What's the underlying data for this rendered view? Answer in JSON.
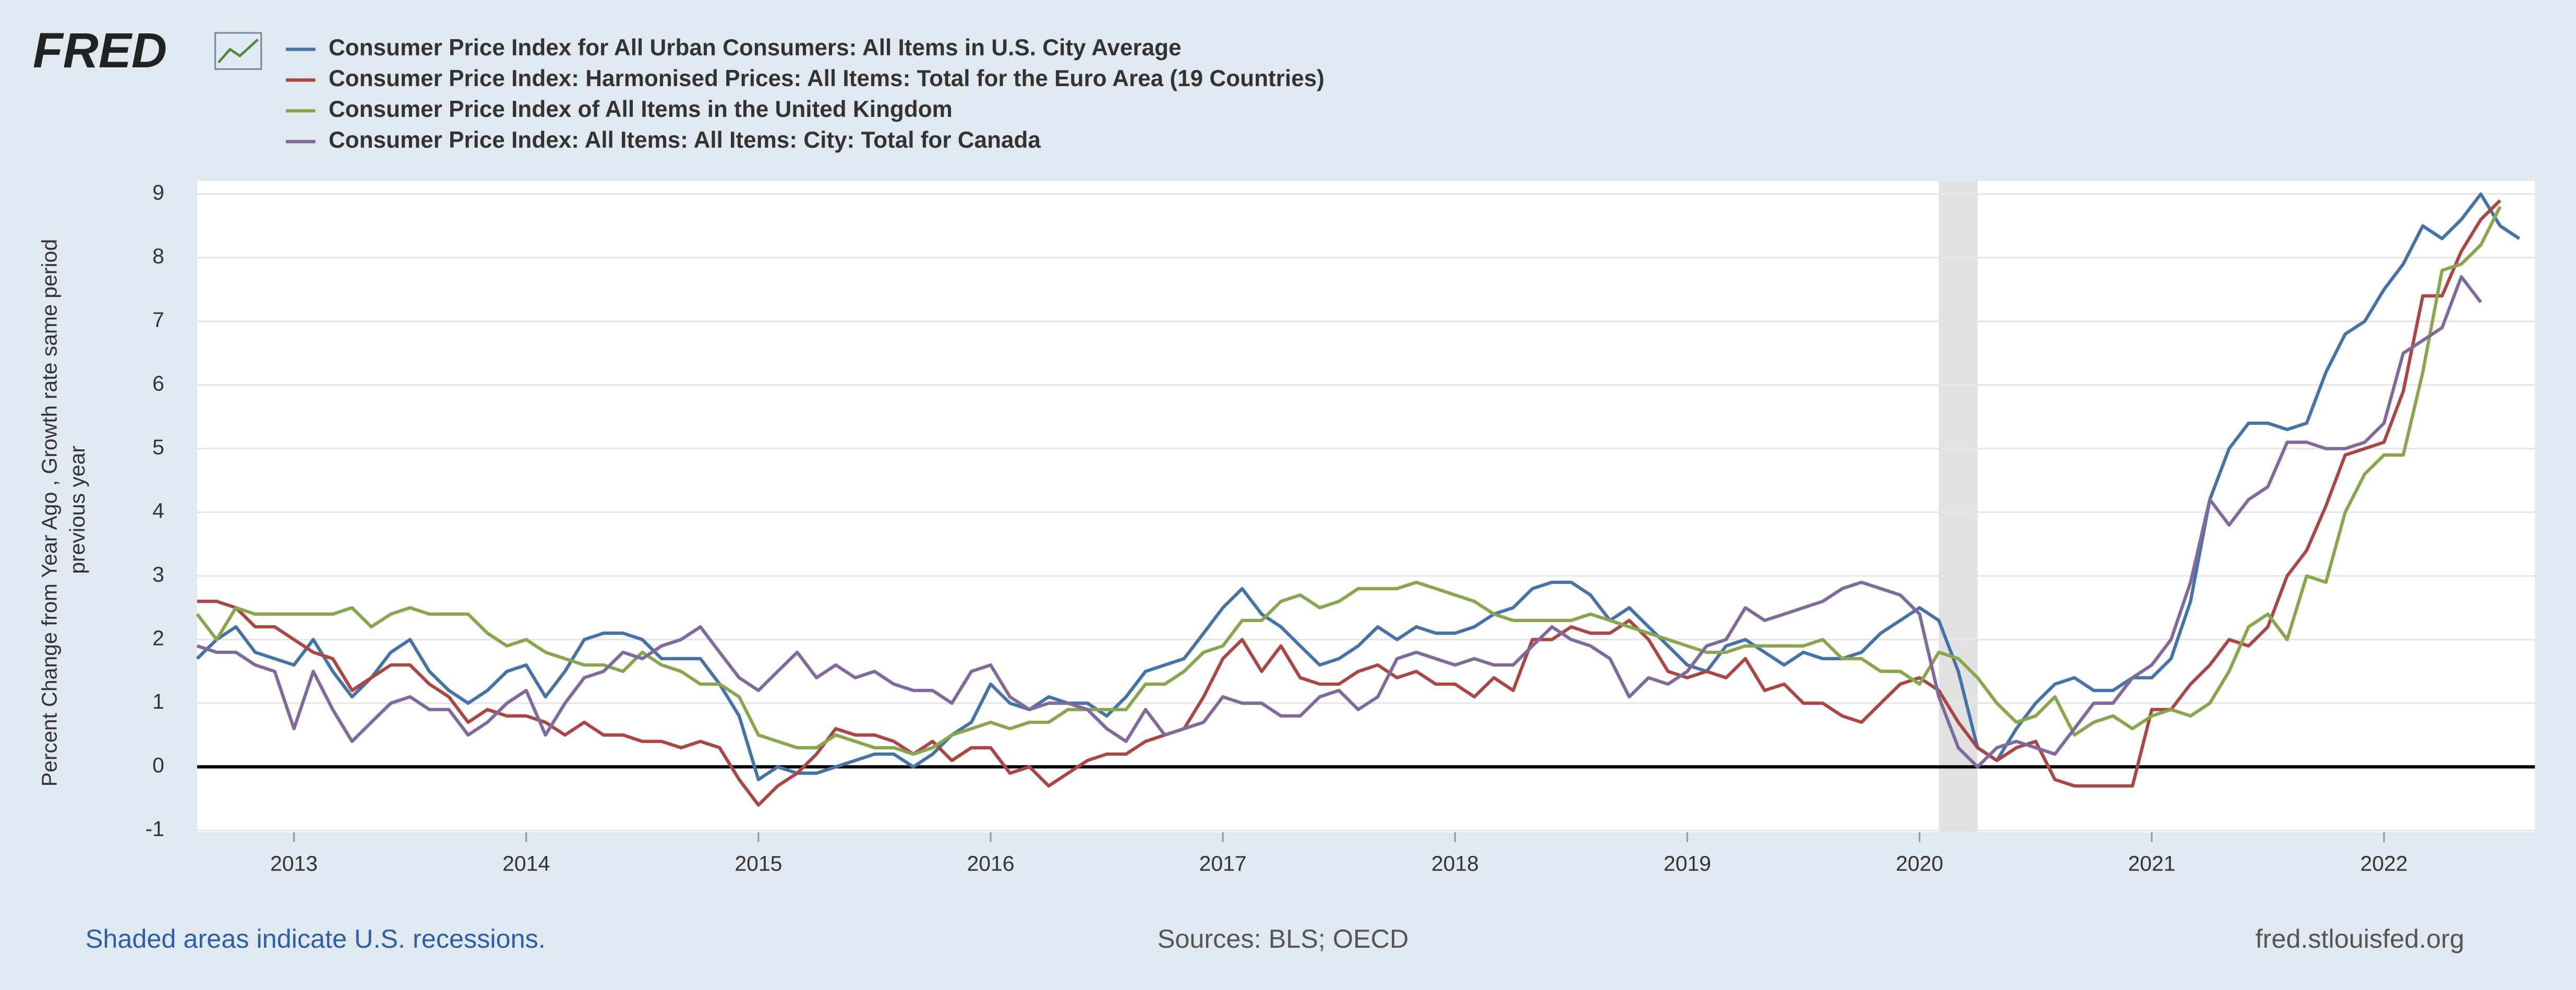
{
  "chart_data": {
    "type": "line",
    "logo": "FRED",
    "ylabel": [
      "Percent Change from Year Ago , Growth rate same period",
      "previous year"
    ],
    "footer_left": "Shaded areas indicate U.S. recessions.",
    "footer_center": "Sources: BLS; OECD",
    "footer_right": "fred.stlouisfed.org",
    "xlim": [
      2012.583,
      2022.65
    ],
    "xticks": [
      2013,
      2014,
      2015,
      2016,
      2017,
      2018,
      2019,
      2020,
      2021,
      2022
    ],
    "ylim": [
      -1,
      9
    ],
    "yticks": [
      -1,
      0,
      1,
      2,
      3,
      4,
      5,
      6,
      7,
      8,
      9
    ],
    "grid": true,
    "recessions": [
      {
        "start": 2020.083,
        "end": 2020.25
      }
    ],
    "x": [
      2012.583,
      2012.667,
      2012.75,
      2012.833,
      2012.917,
      2013,
      2013.083,
      2013.167,
      2013.25,
      2013.333,
      2013.417,
      2013.5,
      2013.583,
      2013.667,
      2013.75,
      2013.833,
      2013.917,
      2014,
      2014.083,
      2014.167,
      2014.25,
      2014.333,
      2014.417,
      2014.5,
      2014.583,
      2014.667,
      2014.75,
      2014.833,
      2014.917,
      2015,
      2015.083,
      2015.167,
      2015.25,
      2015.333,
      2015.417,
      2015.5,
      2015.583,
      2015.667,
      2015.75,
      2015.833,
      2015.917,
      2016,
      2016.083,
      2016.167,
      2016.25,
      2016.333,
      2016.417,
      2016.5,
      2016.583,
      2016.667,
      2016.75,
      2016.833,
      2016.917,
      2017,
      2017.083,
      2017.167,
      2017.25,
      2017.333,
      2017.417,
      2017.5,
      2017.583,
      2017.667,
      2017.75,
      2017.833,
      2017.917,
      2018,
      2018.083,
      2018.167,
      2018.25,
      2018.333,
      2018.417,
      2018.5,
      2018.583,
      2018.667,
      2018.75,
      2018.833,
      2018.917,
      2019,
      2019.083,
      2019.167,
      2019.25,
      2019.333,
      2019.417,
      2019.5,
      2019.583,
      2019.667,
      2019.75,
      2019.833,
      2019.917,
      2020,
      2020.083,
      2020.167,
      2020.25,
      2020.333,
      2020.417,
      2020.5,
      2020.583,
      2020.667,
      2020.75,
      2020.833,
      2020.917,
      2021,
      2021.083,
      2021.167,
      2021.25,
      2021.333,
      2021.417,
      2021.5,
      2021.583,
      2021.667,
      2021.75,
      2021.833,
      2021.917,
      2022,
      2022.083,
      2022.167,
      2022.25,
      2022.333,
      2022.417,
      2022.5,
      2022.583
    ],
    "series": [
      {
        "name": "Consumer Price Index for All Urban Consumers: All Items in U.S. City Average",
        "color": "#4572a7",
        "values": [
          1.7,
          2.0,
          2.2,
          1.8,
          1.7,
          1.6,
          2.0,
          1.5,
          1.1,
          1.4,
          1.8,
          2.0,
          1.5,
          1.2,
          1.0,
          1.2,
          1.5,
          1.6,
          1.1,
          1.5,
          2.0,
          2.1,
          2.1,
          2.0,
          1.7,
          1.7,
          1.7,
          1.3,
          0.8,
          -0.2,
          0.0,
          -0.1,
          -0.1,
          0.0,
          0.1,
          0.2,
          0.2,
          0.0,
          0.2,
          0.5,
          0.7,
          1.3,
          1.0,
          0.9,
          1.1,
          1.0,
          1.0,
          0.8,
          1.1,
          1.5,
          1.6,
          1.7,
          2.1,
          2.5,
          2.8,
          2.4,
          2.2,
          1.9,
          1.6,
          1.7,
          1.9,
          2.2,
          2.0,
          2.2,
          2.1,
          2.1,
          2.2,
          2.4,
          2.5,
          2.8,
          2.9,
          2.9,
          2.7,
          2.3,
          2.5,
          2.2,
          1.9,
          1.6,
          1.5,
          1.9,
          2.0,
          1.8,
          1.6,
          1.8,
          1.7,
          1.7,
          1.8,
          2.1,
          2.3,
          2.5,
          2.3,
          1.5,
          0.3,
          0.1,
          0.6,
          1.0,
          1.3,
          1.4,
          1.2,
          1.2,
          1.4,
          1.4,
          1.7,
          2.6,
          4.2,
          5.0,
          5.4,
          5.4,
          5.3,
          5.4,
          6.2,
          6.8,
          7.0,
          7.5,
          7.9,
          8.5,
          8.3,
          8.6,
          9.0,
          8.5,
          8.3
        ]
      },
      {
        "name": "Consumer Price Index: Harmonised Prices: All Items: Total for the Euro Area (19 Countries)",
        "color": "#aa4643",
        "values": [
          2.6,
          2.6,
          2.5,
          2.2,
          2.2,
          2.0,
          1.8,
          1.7,
          1.2,
          1.4,
          1.6,
          1.6,
          1.3,
          1.1,
          0.7,
          0.9,
          0.8,
          0.8,
          0.7,
          0.5,
          0.7,
          0.5,
          0.5,
          0.4,
          0.4,
          0.3,
          0.4,
          0.3,
          -0.2,
          -0.6,
          -0.3,
          -0.1,
          0.2,
          0.6,
          0.5,
          0.5,
          0.4,
          0.2,
          0.4,
          0.1,
          0.3,
          0.3,
          -0.1,
          0.0,
          -0.3,
          -0.1,
          0.1,
          0.2,
          0.2,
          0.4,
          0.5,
          0.6,
          1.1,
          1.7,
          2.0,
          1.5,
          1.9,
          1.4,
          1.3,
          1.3,
          1.5,
          1.6,
          1.4,
          1.5,
          1.3,
          1.3,
          1.1,
          1.4,
          1.2,
          2.0,
          2.0,
          2.2,
          2.1,
          2.1,
          2.3,
          2.0,
          1.5,
          1.4,
          1.5,
          1.4,
          1.7,
          1.2,
          1.3,
          1.0,
          1.0,
          0.8,
          0.7,
          1.0,
          1.3,
          1.4,
          1.2,
          0.7,
          0.3,
          0.1,
          0.3,
          0.4,
          -0.2,
          -0.3,
          -0.3,
          -0.3,
          -0.3,
          0.9,
          0.9,
          1.3,
          1.6,
          2.0,
          1.9,
          2.2,
          3.0,
          3.4,
          4.1,
          4.9,
          5.0,
          5.1,
          5.9,
          7.4,
          7.4,
          8.1,
          8.6,
          8.9,
          null
        ]
      },
      {
        "name": "Consumer Price Index of All Items in the United Kingdom",
        "color": "#89a54e",
        "values": [
          2.4,
          2.0,
          2.5,
          2.4,
          2.4,
          2.4,
          2.4,
          2.4,
          2.5,
          2.2,
          2.4,
          2.5,
          2.4,
          2.4,
          2.4,
          2.1,
          1.9,
          2.0,
          1.8,
          1.7,
          1.6,
          1.6,
          1.5,
          1.8,
          1.6,
          1.5,
          1.3,
          1.3,
          1.1,
          0.5,
          0.4,
          0.3,
          0.3,
          0.5,
          0.4,
          0.3,
          0.3,
          0.2,
          0.3,
          0.5,
          0.6,
          0.7,
          0.6,
          0.7,
          0.7,
          0.9,
          0.9,
          0.9,
          0.9,
          1.3,
          1.3,
          1.5,
          1.8,
          1.9,
          2.3,
          2.3,
          2.6,
          2.7,
          2.5,
          2.6,
          2.8,
          2.8,
          2.8,
          2.9,
          2.8,
          2.7,
          2.6,
          2.4,
          2.3,
          2.3,
          2.3,
          2.3,
          2.4,
          2.3,
          2.2,
          2.1,
          2.0,
          1.9,
          1.8,
          1.8,
          1.9,
          1.9,
          1.9,
          1.9,
          2.0,
          1.7,
          1.7,
          1.5,
          1.5,
          1.3,
          1.8,
          1.7,
          1.4,
          1.0,
          0.7,
          0.8,
          1.1,
          0.5,
          0.7,
          0.8,
          0.6,
          0.8,
          0.9,
          0.8,
          1.0,
          1.5,
          2.2,
          2.4,
          2.0,
          3.0,
          2.9,
          4.0,
          4.6,
          4.9,
          4.9,
          6.2,
          7.8,
          7.9,
          8.2,
          8.8,
          null
        ]
      },
      {
        "name": "Consumer Price Index: All Items: All Items: City: Total for Canada",
        "color": "#80699b",
        "values": [
          1.9,
          1.8,
          1.8,
          1.6,
          1.5,
          0.6,
          1.5,
          0.9,
          0.4,
          0.7,
          1.0,
          1.1,
          0.9,
          0.9,
          0.5,
          0.7,
          1.0,
          1.2,
          0.5,
          1.0,
          1.4,
          1.5,
          1.8,
          1.7,
          1.9,
          2.0,
          2.2,
          1.8,
          1.4,
          1.2,
          1.5,
          1.8,
          1.4,
          1.6,
          1.4,
          1.5,
          1.3,
          1.2,
          1.2,
          1.0,
          1.5,
          1.6,
          1.1,
          0.9,
          1.0,
          1.0,
          0.9,
          0.6,
          0.4,
          0.9,
          0.5,
          0.6,
          0.7,
          1.1,
          1.0,
          1.0,
          0.8,
          0.8,
          1.1,
          1.2,
          0.9,
          1.1,
          1.7,
          1.8,
          1.7,
          1.6,
          1.7,
          1.6,
          1.6,
          1.9,
          2.2,
          2.0,
          1.9,
          1.7,
          1.1,
          1.4,
          1.3,
          1.5,
          1.9,
          2.0,
          2.5,
          2.3,
          2.4,
          2.5,
          2.6,
          2.8,
          2.9,
          2.8,
          2.7,
          2.4,
          1.1,
          0.3,
          0.0,
          0.3,
          0.4,
          0.3,
          0.2,
          0.6,
          1.0,
          1.0,
          1.4,
          1.6,
          2.0,
          2.9,
          4.2,
          3.8,
          4.2,
          4.4,
          5.1,
          5.1,
          5.0,
          5.0,
          5.1,
          5.4,
          6.5,
          6.7,
          6.9,
          7.7,
          7.3,
          null,
          null
        ]
      }
    ]
  }
}
